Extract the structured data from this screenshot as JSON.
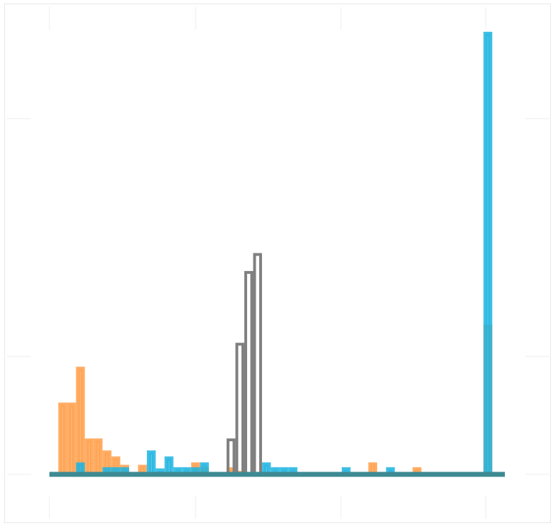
{
  "chart_data": {
    "type": "bar",
    "histtype": "step",
    "title": "",
    "xlabel": "",
    "ylabel": "",
    "xlim": [
      0,
      1
    ],
    "ylim": [
      0,
      3.7
    ],
    "grid": false,
    "tick_labels_visible": false,
    "bin_width": 0.0196,
    "series": [
      {
        "color": "#ff9f4a",
        "style": "filled-step",
        "bins": [
          {
            "x": 0.0196,
            "value": 0.6
          },
          {
            "x": 0.0392,
            "value": 0.6
          },
          {
            "x": 0.0588,
            "value": 0.9
          },
          {
            "x": 0.0784,
            "value": 0.3
          },
          {
            "x": 0.098,
            "value": 0.3
          },
          {
            "x": 0.1176,
            "value": 0.2
          },
          {
            "x": 0.1372,
            "value": 0.15
          },
          {
            "x": 0.1568,
            "value": 0.08
          },
          {
            "x": 0.196,
            "value": 0.08
          },
          {
            "x": 0.3136,
            "value": 0.1
          },
          {
            "x": 0.3332,
            "value": 0.06
          },
          {
            "x": 0.392,
            "value": 0.06
          },
          {
            "x": 0.4116,
            "value": 0.03
          },
          {
            "x": 0.7056,
            "value": 0.1
          },
          {
            "x": 0.8036,
            "value": 0.06
          },
          {
            "x": 0.9604,
            "value": 1.25
          }
        ]
      },
      {
        "color": "#1fb4e0",
        "style": "filled-step",
        "bins": [
          {
            "x": 0.0588,
            "value": 0.1
          },
          {
            "x": 0.1176,
            "value": 0.06
          },
          {
            "x": 0.1372,
            "value": 0.06
          },
          {
            "x": 0.1568,
            "value": 0.06
          },
          {
            "x": 0.2156,
            "value": 0.2
          },
          {
            "x": 0.2352,
            "value": 0.05
          },
          {
            "x": 0.2548,
            "value": 0.15
          },
          {
            "x": 0.2744,
            "value": 0.06
          },
          {
            "x": 0.294,
            "value": 0.06
          },
          {
            "x": 0.3136,
            "value": 0.06
          },
          {
            "x": 0.3332,
            "value": 0.1
          },
          {
            "x": 0.4704,
            "value": 0.1
          },
          {
            "x": 0.49,
            "value": 0.06
          },
          {
            "x": 0.5096,
            "value": 0.06
          },
          {
            "x": 0.5292,
            "value": 0.06
          },
          {
            "x": 0.6468,
            "value": 0.06
          },
          {
            "x": 0.7448,
            "value": 0.06
          },
          {
            "x": 0.9604,
            "value": 3.7
          }
        ]
      },
      {
        "color": "#808080",
        "style": "outline-step",
        "bins": [
          {
            "x": 0.392,
            "value": 0.3
          },
          {
            "x": 0.4116,
            "value": 1.1
          },
          {
            "x": 0.4312,
            "value": 1.7
          },
          {
            "x": 0.4508,
            "value": 1.85
          }
        ]
      }
    ]
  }
}
